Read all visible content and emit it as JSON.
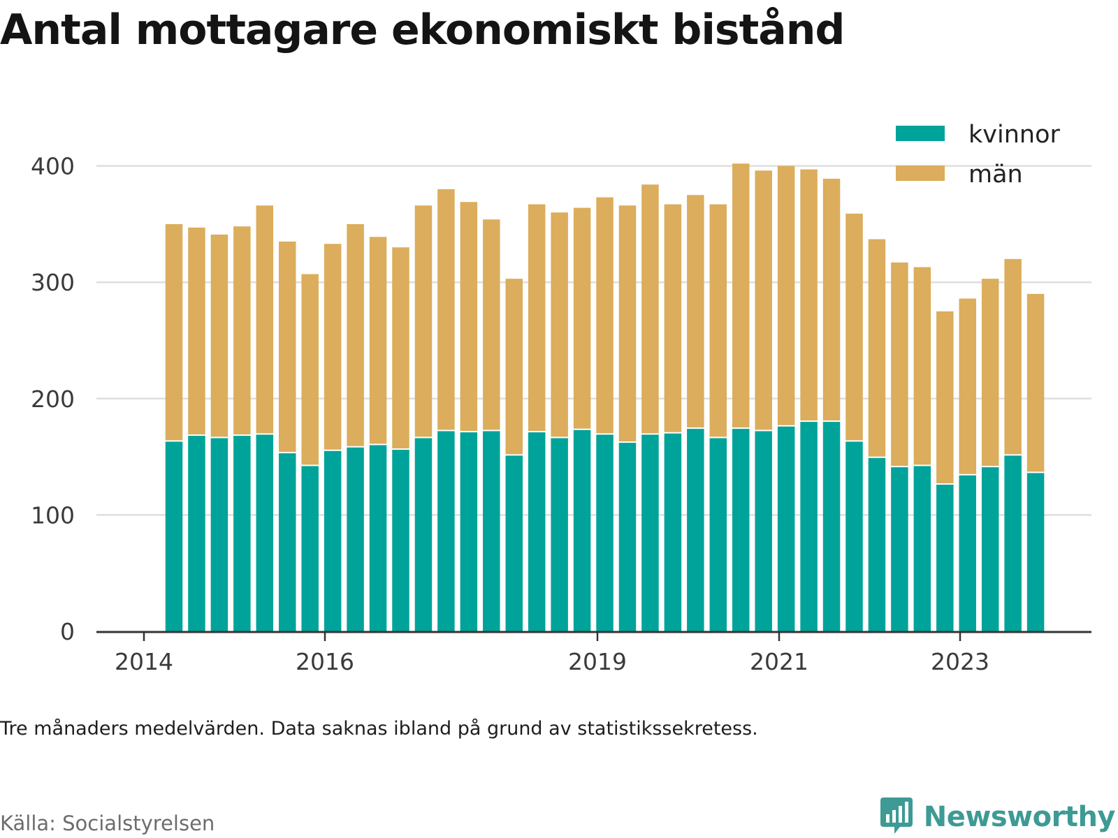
{
  "title": "Antal mottagare ekonomiskt bistånd",
  "footnote": "Tre månaders medelvärden. Data saknas ibland på grund av statistikssekretess.",
  "source": "Källa: Socialstyrelsen",
  "brand": {
    "name": "Newsworthy",
    "icon": "newsworthy-logo-icon",
    "color": "#3e9a94"
  },
  "chart_data": {
    "type": "bar",
    "stacked": true,
    "x_ticks": [
      "2014",
      "2016",
      "2019",
      "2021",
      "2023"
    ],
    "y_ticks": [
      "0",
      "100",
      "200",
      "300",
      "400"
    ],
    "ylim": [
      0,
      420
    ],
    "grid": true,
    "legend_position": "top-right",
    "series": [
      {
        "name": "kvinnor",
        "color": "#00a39a",
        "values": [
          163,
          168,
          166,
          168,
          169,
          153,
          142,
          155,
          158,
          160,
          156,
          166,
          172,
          171,
          172,
          151,
          171,
          166,
          173,
          169,
          162,
          169,
          170,
          174,
          166,
          174,
          172,
          176,
          180,
          180,
          163,
          149,
          141,
          142,
          126,
          134,
          141,
          151,
          136
        ]
      },
      {
        "name": "män",
        "color": "#dbad5c",
        "values": [
          187,
          179,
          175,
          180,
          197,
          182,
          165,
          178,
          192,
          179,
          174,
          200,
          208,
          198,
          182,
          152,
          196,
          194,
          191,
          204,
          204,
          215,
          197,
          201,
          201,
          228,
          224,
          224,
          217,
          209,
          196,
          188,
          176,
          171,
          149,
          152,
          162,
          169,
          154
        ]
      }
    ]
  }
}
